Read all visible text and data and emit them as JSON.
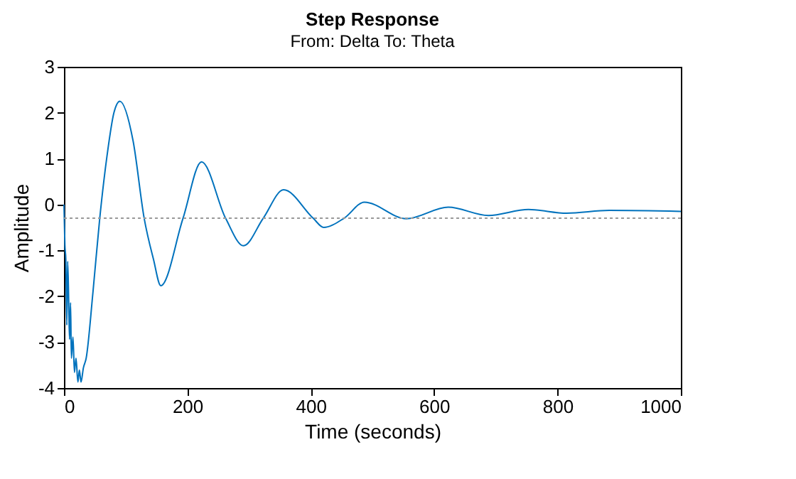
{
  "chart_data": {
    "type": "line",
    "title": "Step Response",
    "subtitle": "From: Delta  To: Theta",
    "xlabel": "Time (seconds)",
    "ylabel": "Amplitude",
    "x": [
      0,
      1.5,
      3,
      4.6,
      6,
      7.7,
      9,
      10.7,
      12,
      14.6,
      17,
      19.5,
      22.6,
      25,
      27.6,
      31.5,
      36,
      47,
      58,
      70,
      81,
      90.5,
      112,
      130,
      145,
      157,
      193,
      223,
      262,
      291,
      323,
      356,
      404,
      421,
      454,
      487,
      555,
      623,
      688,
      753,
      815,
      884,
      1000
    ],
    "series": [
      {
        "color": "#0072bd",
        "values": [
          0,
          -0.88,
          -1.19,
          -2.63,
          -1.24,
          -2.11,
          -2.94,
          -2.14,
          -3.35,
          -2.89,
          -3.66,
          -3.35,
          -3.87,
          -3.61,
          -3.87,
          -3.56,
          -3.35,
          -1.91,
          -0.3,
          1.08,
          2.0,
          2.25,
          1.39,
          -0.3,
          -1.19,
          -1.77,
          -0.3,
          0.93,
          -0.3,
          -0.9,
          -0.3,
          0.32,
          -0.3,
          -0.5,
          -0.3,
          0.05,
          -0.31,
          -0.06,
          -0.24,
          -0.11,
          -0.19,
          -0.13,
          -0.15
        ]
      }
    ],
    "xlim": [
      0,
      1000
    ],
    "xticks": [
      0,
      200,
      400,
      600,
      800,
      1000
    ],
    "ylim": [
      -4,
      3
    ],
    "yticks": [
      -4,
      -3,
      -2,
      -1,
      0,
      1,
      2,
      3
    ],
    "ref_lines": [
      {
        "axis": "y",
        "value": -0.3,
        "color": "#999999",
        "line_style": "dotted"
      }
    ],
    "grid": false
  }
}
